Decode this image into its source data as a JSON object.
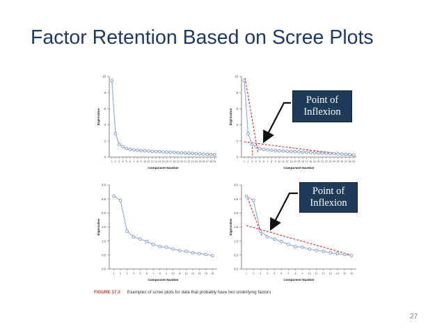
{
  "slide": {
    "title": "Factor Retention Based on Scree Plots",
    "page_number": "27"
  },
  "caption": {
    "label": "FIGURE 17.3",
    "text": "Examples of scree plots for data that probably have two underlying factors"
  },
  "callouts": [
    {
      "line1": "Point of",
      "line2": "Inflexion"
    },
    {
      "line1": "Point of",
      "line2": "Inflexion"
    }
  ],
  "colors": {
    "title": "#1f3864",
    "series_line": "#8fa7d8",
    "series_marker": "#6f88c7",
    "dashed_line": "#d62a2a",
    "arrow": "#111111",
    "callout_fill": "#1f3b5a"
  },
  "chart_data": [
    {
      "type": "line",
      "panel": "top-left",
      "xlabel": "Component Number",
      "ylabel": "Eigenvalue",
      "x": [
        1,
        2,
        3,
        4,
        5,
        6,
        7,
        8,
        9,
        10,
        11,
        12,
        13,
        14,
        15,
        16,
        17,
        18,
        19,
        20,
        21,
        22,
        23,
        24,
        25,
        26,
        27,
        28,
        29
      ],
      "xticks": [
        "1",
        "2",
        "3",
        "4",
        "5",
        "6",
        "7",
        "8",
        "9",
        "10",
        "11",
        "12",
        "13",
        "14",
        "15",
        "16",
        "17",
        "18",
        "19",
        "20",
        "21",
        "22",
        "23",
        "24",
        "25",
        "26",
        "27",
        "28",
        "29"
      ],
      "series": [
        {
          "values": [
            9.5,
            2.9,
            1.6,
            1.3,
            1.05,
            0.95,
            0.9,
            0.85,
            0.8,
            0.78,
            0.75,
            0.72,
            0.7,
            0.67,
            0.65,
            0.62,
            0.6,
            0.58,
            0.55,
            0.52,
            0.5,
            0.48,
            0.45,
            0.43,
            0.4,
            0.38,
            0.35,
            0.33,
            0.3
          ]
        }
      ],
      "ylim": [
        0,
        10
      ],
      "yticks": [
        "0",
        "2",
        "4",
        "6",
        "8",
        "10"
      ],
      "dashed_lines": []
    },
    {
      "type": "line",
      "panel": "top-right",
      "xlabel": "Component Number",
      "ylabel": "Eigenvalue",
      "x": [
        1,
        2,
        3,
        4,
        5,
        6,
        7,
        8,
        9,
        10,
        11,
        12,
        13,
        14,
        15,
        16,
        17,
        18,
        19,
        20,
        21,
        22,
        23,
        24,
        25,
        26,
        27,
        28,
        29
      ],
      "xticks": [
        "1",
        "2",
        "3",
        "4",
        "5",
        "6",
        "7",
        "8",
        "9",
        "10",
        "11",
        "12",
        "13",
        "14",
        "15",
        "16",
        "17",
        "18",
        "19",
        "20",
        "21",
        "22",
        "23",
        "24",
        "25",
        "26",
        "27",
        "28",
        "29"
      ],
      "series": [
        {
          "values": [
            9.5,
            2.9,
            1.6,
            1.3,
            1.05,
            0.95,
            0.9,
            0.85,
            0.8,
            0.78,
            0.75,
            0.72,
            0.7,
            0.67,
            0.65,
            0.62,
            0.6,
            0.58,
            0.55,
            0.52,
            0.5,
            0.48,
            0.45,
            0.43,
            0.4,
            0.38,
            0.35,
            0.33,
            0.3
          ]
        }
      ],
      "ylim": [
        0,
        10
      ],
      "yticks": [
        "0",
        "2",
        "4",
        "6",
        "8",
        "10"
      ],
      "dashed_lines": [
        {
          "x1": 1.2,
          "y1": 9.8,
          "x2": 4.5,
          "y2": 0.6
        },
        {
          "x1": 1,
          "y1": 1.9,
          "x2": 29.5,
          "y2": 0.15
        },
        {
          "x1": 3.1,
          "y1": 1.7,
          "x2": 3.1,
          "y2": 0.2
        }
      ]
    },
    {
      "type": "line",
      "panel": "bottom-left",
      "xlabel": "Component Number",
      "ylabel": "Eigenvalue",
      "x": [
        1,
        2,
        3,
        4,
        5,
        6,
        7,
        8,
        9,
        10,
        11,
        12,
        13,
        14,
        15,
        16
      ],
      "xticks": [
        "1",
        "2",
        "3",
        "4",
        "5",
        "6",
        "7",
        "8",
        "9",
        "10",
        "11",
        "12",
        "13",
        "14",
        "15",
        "16"
      ],
      "series": [
        {
          "values": [
            2.6,
            2.45,
            1.35,
            1.15,
            1.07,
            0.98,
            0.88,
            0.8,
            0.78,
            0.71,
            0.66,
            0.63,
            0.58,
            0.55,
            0.52,
            0.48
          ]
        }
      ],
      "ylim": [
        0,
        3
      ],
      "yticks": [
        "0.0",
        "0.5",
        "1.0",
        "1.5",
        "2.0",
        "2.5",
        "3.0"
      ],
      "dashed_lines": []
    },
    {
      "type": "line",
      "panel": "bottom-right",
      "xlabel": "Component Number",
      "ylabel": "Eigenvalue",
      "x": [
        1,
        2,
        3,
        4,
        5,
        6,
        7,
        8,
        9,
        10,
        11,
        12,
        13,
        14,
        15,
        16
      ],
      "xticks": [
        "1",
        "2",
        "3",
        "4",
        "5",
        "6",
        "7",
        "8",
        "9",
        "10",
        "11",
        "12",
        "13",
        "14",
        "15",
        "16"
      ],
      "series": [
        {
          "values": [
            2.6,
            2.45,
            1.35,
            1.15,
            1.07,
            0.98,
            0.88,
            0.8,
            0.78,
            0.71,
            0.66,
            0.63,
            0.58,
            0.55,
            0.52,
            0.48
          ]
        }
      ],
      "ylim": [
        0,
        3
      ],
      "yticks": [
        "0.0",
        "0.5",
        "1.0",
        "1.5",
        "2.0",
        "2.5",
        "3.0"
      ],
      "dashed_lines": [
        {
          "x1": 1,
          "y1": 2.65,
          "x2": 3.2,
          "y2": 1.2
        },
        {
          "x1": 1,
          "y1": 1.55,
          "x2": 16,
          "y2": 0.5
        }
      ]
    }
  ]
}
